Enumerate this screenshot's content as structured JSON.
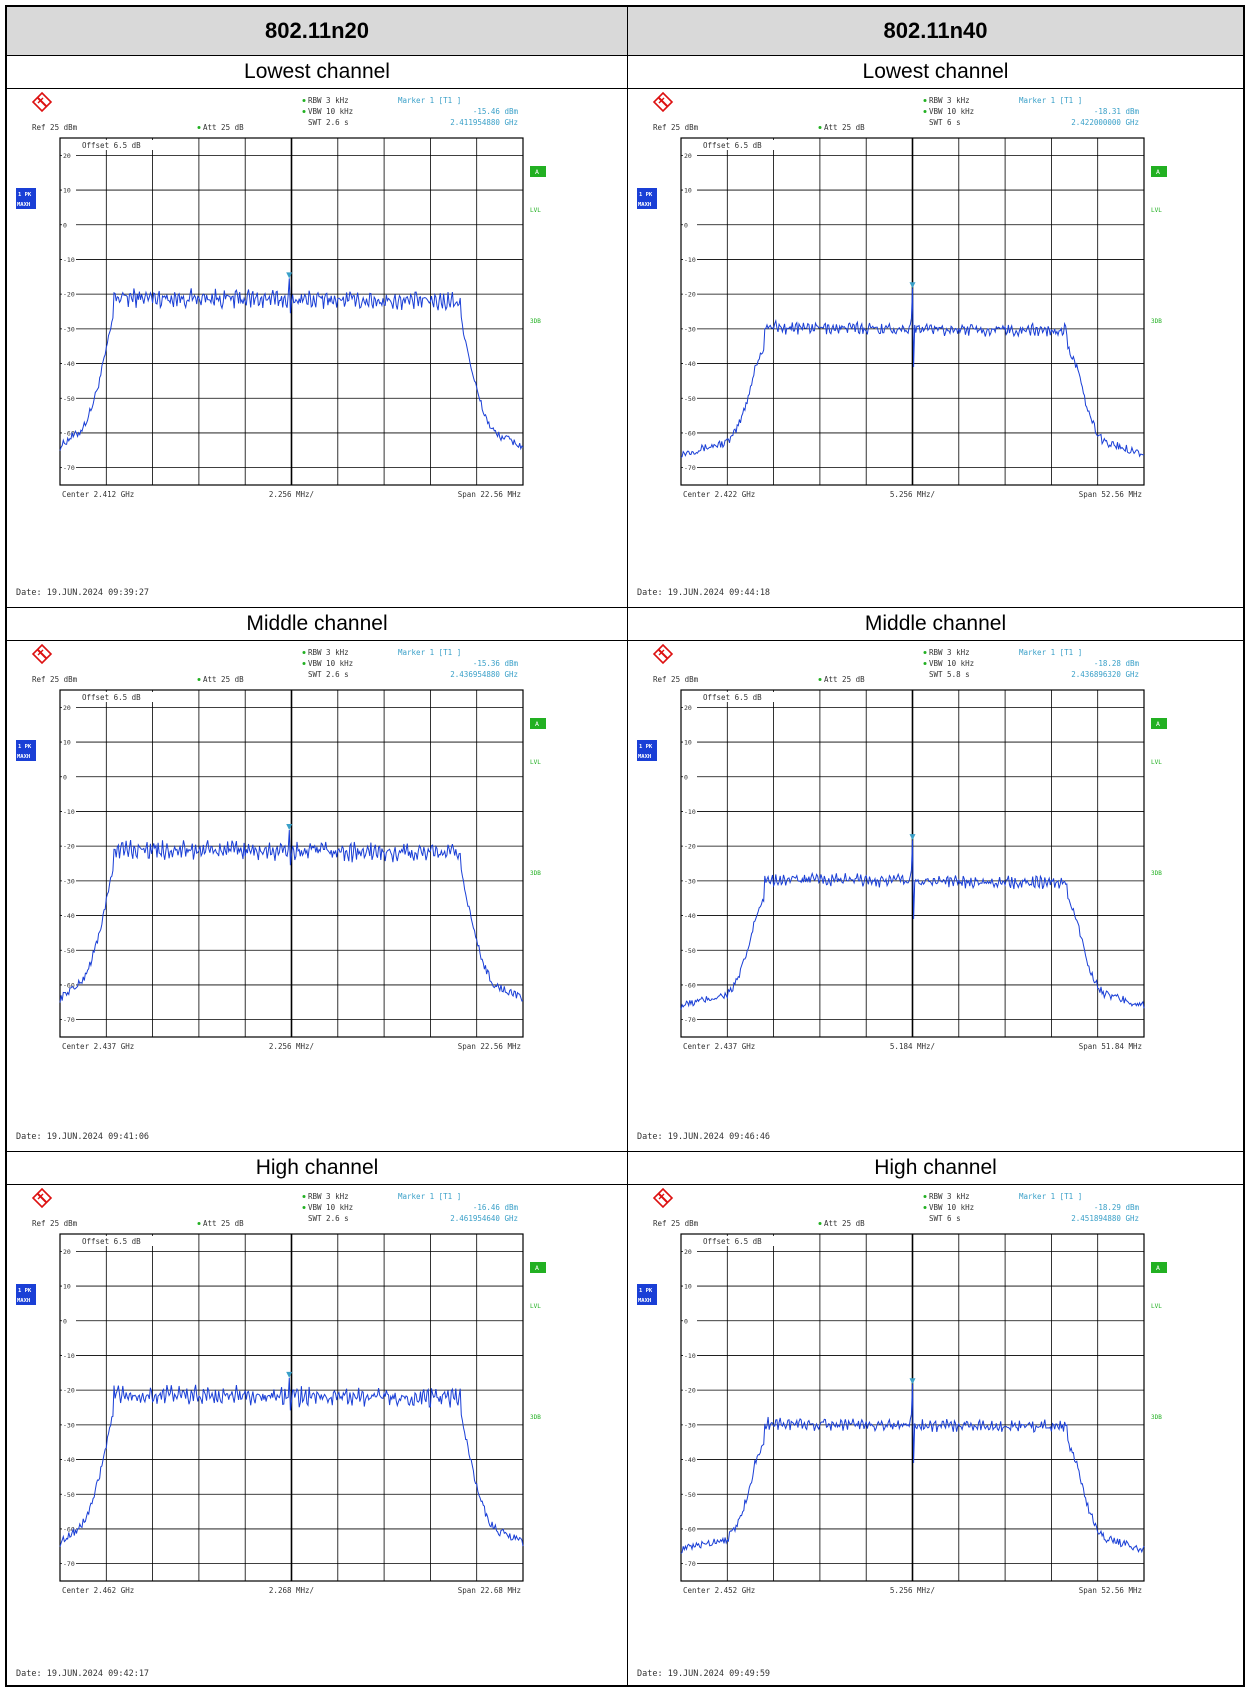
{
  "table": {
    "columns": [
      "802.11n20",
      "802.11n40"
    ],
    "rows": [
      "Lowest channel",
      "Middle channel",
      "High channel"
    ]
  },
  "colors": {
    "trace": "#1a3fd6",
    "grid": "#000000",
    "label_text": "#333333",
    "marker_text": "#3aa0c8",
    "green": "#22b022",
    "badge_blue": "#1a3fd6"
  },
  "chart_data": [
    {
      "id": "n20-low",
      "type": "line",
      "column": "802.11n20",
      "row": "Lowest channel",
      "ref": "Ref  25 dBm",
      "att": "Att  25 dB",
      "offset": "Offset  6.5 dB",
      "rbw": "RBW 3 kHz",
      "vbw": "VBW 10 kHz",
      "swt": "SWT 2.6 s",
      "marker_title": "Marker 1 [T1 ]",
      "marker_level": "-15.46 dBm",
      "marker_freq": "2.411954880 GHz",
      "center": "Center  2.412 GHz",
      "div": "2.256 MHz/",
      "span": "Span  22.56 MHz",
      "date": "Date: 19.JUN.2024  09:39:27",
      "marker_x": 0.495,
      "marker_y": -15.46,
      "plateau": -21.5,
      "ripple": 2.4,
      "edges": [
        0.095,
        0.885
      ],
      "floor": -64,
      "dip": 0
    },
    {
      "id": "n40-low",
      "type": "line",
      "column": "802.11n40",
      "row": "Lowest channel",
      "ref": "Ref  25 dBm",
      "att": "Att  25 dB",
      "offset": "Offset  6.5 dB",
      "rbw": "RBW 3 kHz",
      "vbw": "VBW 10 kHz",
      "swt": "SWT 6 s",
      "marker_title": "Marker 1 [T1 ]",
      "marker_level": "-18.31 dBm",
      "marker_freq": "2.422000000 GHz",
      "center": "Center  2.422 GHz",
      "div": "5.256 MHz/",
      "span": "Span  52.56 MHz",
      "date": "Date: 19.JUN.2024  09:44:18",
      "marker_x": 0.5,
      "marker_y": -18.31,
      "plateau": -30,
      "ripple": 1.6,
      "edges": [
        0.16,
        0.855
      ],
      "floor": -66,
      "dip": -41
    },
    {
      "id": "n20-mid",
      "type": "line",
      "column": "802.11n20",
      "row": "Middle channel",
      "ref": "Ref  25 dBm",
      "att": "Att  25 dB",
      "offset": "Offset  6.5 dB",
      "rbw": "RBW 3 kHz",
      "vbw": "VBW 10 kHz",
      "swt": "SWT 2.6 s",
      "marker_title": "Marker 1 [T1 ]",
      "marker_level": "-15.36 dBm",
      "marker_freq": "2.436954880 GHz",
      "center": "Center  2.437 GHz",
      "div": "2.256 MHz/",
      "span": "Span  22.56 MHz",
      "date": "Date: 19.JUN.2024  09:41:06",
      "marker_x": 0.495,
      "marker_y": -15.36,
      "plateau": -21.5,
      "ripple": 2.4,
      "edges": [
        0.095,
        0.885
      ],
      "floor": -64,
      "dip": 0
    },
    {
      "id": "n40-mid",
      "type": "line",
      "column": "802.11n40",
      "row": "Middle channel",
      "ref": "Ref  25 dBm",
      "att": "Att  25 dB",
      "offset": "Offset  6.5 dB",
      "rbw": "RBW 3 kHz",
      "vbw": "VBW 10 kHz",
      "swt": "SWT 5.8 s",
      "marker_title": "Marker 1 [T1 ]",
      "marker_level": "-18.28 dBm",
      "marker_freq": "2.436896320 GHz",
      "center": "Center  2.437 GHz",
      "div": "5.184 MHz/",
      "span": "Span  51.84 MHz",
      "date": "Date: 19.JUN.2024  09:46:46",
      "marker_x": 0.5,
      "marker_y": -18.28,
      "plateau": -30,
      "ripple": 1.6,
      "edges": [
        0.16,
        0.855
      ],
      "floor": -66,
      "dip": -41
    },
    {
      "id": "n20-high",
      "type": "line",
      "column": "802.11n20",
      "row": "High channel",
      "ref": "Ref  25 dBm",
      "att": "Att  25 dB",
      "offset": "Offset  6.5 dB",
      "rbw": "RBW 3 kHz",
      "vbw": "VBW 10 kHz",
      "swt": "SWT 2.6 s",
      "marker_title": "Marker 1 [T1 ]",
      "marker_level": "-16.46 dBm",
      "marker_freq": "2.461954640 GHz",
      "center": "Center  2.462 GHz",
      "div": "2.268 MHz/",
      "span": "Span  22.68 MHz",
      "date": "Date: 19.JUN.2024  09:42:17",
      "marker_x": 0.495,
      "marker_y": -16.46,
      "plateau": -21.8,
      "ripple": 2.4,
      "edges": [
        0.095,
        0.885
      ],
      "floor": -64,
      "dip": 0
    },
    {
      "id": "n40-high",
      "type": "line",
      "column": "802.11n40",
      "row": "High channel",
      "ref": "Ref  25 dBm",
      "att": "Att  25 dB",
      "offset": "Offset  6.5 dB",
      "rbw": "RBW 3 kHz",
      "vbw": "VBW 10 kHz",
      "swt": "SWT 6 s",
      "marker_title": "Marker 1 [T1 ]",
      "marker_level": "-18.29 dBm",
      "marker_freq": "2.451894880 GHz",
      "center": "Center  2.452 GHz",
      "div": "5.256 MHz/",
      "span": "Span  52.56 MHz",
      "date": "Date: 19.JUN.2024  09:49:59",
      "marker_x": 0.5,
      "marker_y": -18.29,
      "plateau": -30,
      "ripple": 1.6,
      "edges": [
        0.16,
        0.855
      ],
      "floor": -66,
      "dip": -41
    }
  ],
  "analyzer": {
    "y_ticks": [
      "20",
      "10",
      "0",
      "-10",
      "-20",
      "-30",
      "-40",
      "-50",
      "-60",
      "-70"
    ],
    "ylim": [
      -75,
      25
    ],
    "badge_top": "1 PK",
    "badge_bottom": "MAXH",
    "side_a": "A",
    "side_lvl": "LVL",
    "side_3db": "3DB"
  }
}
